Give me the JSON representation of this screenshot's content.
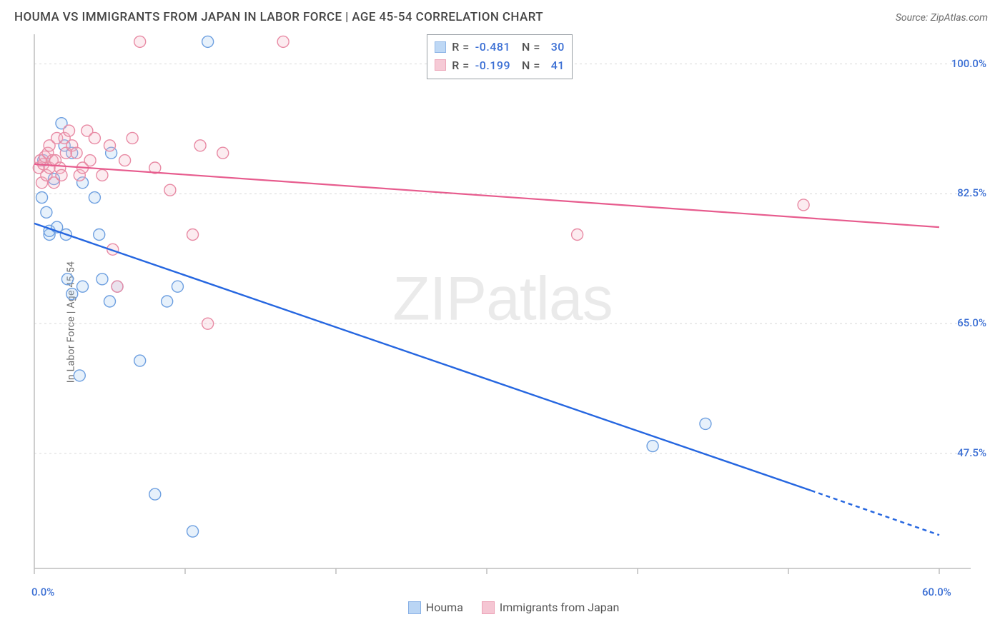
{
  "header": {
    "title": "HOUMA VS IMMIGRANTS FROM JAPAN IN LABOR FORCE | AGE 45-54 CORRELATION CHART",
    "source_prefix": "Source: ",
    "source_name": "ZipAtlas.com"
  },
  "chart": {
    "type": "scatter",
    "ylabel": "In Labor Force | Age 45-54",
    "watermark_bold": "ZIP",
    "watermark_thin": "atlas",
    "background_color": "#ffffff",
    "grid_color": "#d8d8d8",
    "axis_color": "#bdbdbd",
    "label_color": "#3b6fd4",
    "xlim": [
      0,
      60
    ],
    "ylim": [
      32,
      104
    ],
    "x_ticks": [
      0,
      10,
      20,
      30,
      40,
      50,
      60
    ],
    "x_tick_labels": {
      "0": "0.0%",
      "60": "60.0%"
    },
    "y_ticks": [
      47.5,
      65.0,
      82.5,
      100.0
    ],
    "y_tick_labels": {
      "47.5": "47.5%",
      "65.0": "65.0%",
      "82.5": "82.5%",
      "100.0": "100.0%"
    },
    "marker_radius": 8,
    "marker_stroke_width": 1.4,
    "marker_fill_opacity": 0.28,
    "series": [
      {
        "name": "Houma",
        "legend_label": "Houma",
        "color_stroke": "#6d9fe0",
        "color_fill": "#a9cbf2",
        "trend_color": "#2566e0",
        "trend_width": 2.4,
        "trend_start": [
          0,
          78.5
        ],
        "trend_end_solid": [
          51.5,
          42.5
        ],
        "trend_end_dash": [
          60,
          36.5
        ],
        "R": "-0.481",
        "N": "30",
        "points": [
          [
            0.5,
            82
          ],
          [
            0.6,
            87
          ],
          [
            0.8,
            80
          ],
          [
            1.0,
            77
          ],
          [
            1.0,
            77.5
          ],
          [
            1.3,
            84.5
          ],
          [
            1.5,
            78
          ],
          [
            1.8,
            92
          ],
          [
            2.0,
            89
          ],
          [
            2.1,
            77
          ],
          [
            2.2,
            71
          ],
          [
            2.5,
            69
          ],
          [
            2.5,
            88
          ],
          [
            3.0,
            58
          ],
          [
            3.2,
            70
          ],
          [
            3.2,
            84
          ],
          [
            4.0,
            82
          ],
          [
            4.3,
            77
          ],
          [
            4.5,
            71
          ],
          [
            5.0,
            68
          ],
          [
            5.1,
            88
          ],
          [
            5.5,
            70
          ],
          [
            7.0,
            60
          ],
          [
            8.0,
            42
          ],
          [
            8.8,
            68
          ],
          [
            9.5,
            70
          ],
          [
            10.5,
            37
          ],
          [
            11.5,
            103
          ],
          [
            41.0,
            48.5
          ],
          [
            44.5,
            51.5
          ]
        ]
      },
      {
        "name": "Immigrants from Japan",
        "legend_label": "Immigrants from Japan",
        "color_stroke": "#e88aa4",
        "color_fill": "#f3b9c9",
        "trend_color": "#e75c8e",
        "trend_width": 2.2,
        "trend_start": [
          0,
          86.5
        ],
        "trend_end_solid": [
          60,
          78
        ],
        "trend_end_dash": [
          60,
          78
        ],
        "R": "-0.199",
        "N": "41",
        "points": [
          [
            0.3,
            86
          ],
          [
            0.4,
            87
          ],
          [
            0.5,
            84
          ],
          [
            0.6,
            86.5
          ],
          [
            0.7,
            87.5
          ],
          [
            0.8,
            85
          ],
          [
            0.9,
            88
          ],
          [
            1.0,
            86
          ],
          [
            1.0,
            89
          ],
          [
            1.2,
            87
          ],
          [
            1.3,
            84
          ],
          [
            1.4,
            87
          ],
          [
            1.5,
            90
          ],
          [
            1.7,
            86
          ],
          [
            1.8,
            85
          ],
          [
            2.0,
            90
          ],
          [
            2.1,
            88
          ],
          [
            2.3,
            91
          ],
          [
            2.5,
            89
          ],
          [
            2.8,
            88
          ],
          [
            3.0,
            85
          ],
          [
            3.2,
            86
          ],
          [
            3.5,
            91
          ],
          [
            3.7,
            87
          ],
          [
            4.0,
            90
          ],
          [
            4.5,
            85
          ],
          [
            5.0,
            89
          ],
          [
            5.2,
            75
          ],
          [
            5.5,
            70
          ],
          [
            6.0,
            87
          ],
          [
            6.5,
            90
          ],
          [
            7.0,
            103
          ],
          [
            8.0,
            86
          ],
          [
            9.0,
            83
          ],
          [
            10.5,
            77
          ],
          [
            11.0,
            89
          ],
          [
            11.5,
            65
          ],
          [
            12.5,
            88
          ],
          [
            16.5,
            103
          ],
          [
            36.0,
            77
          ],
          [
            51.0,
            81
          ]
        ]
      }
    ]
  }
}
